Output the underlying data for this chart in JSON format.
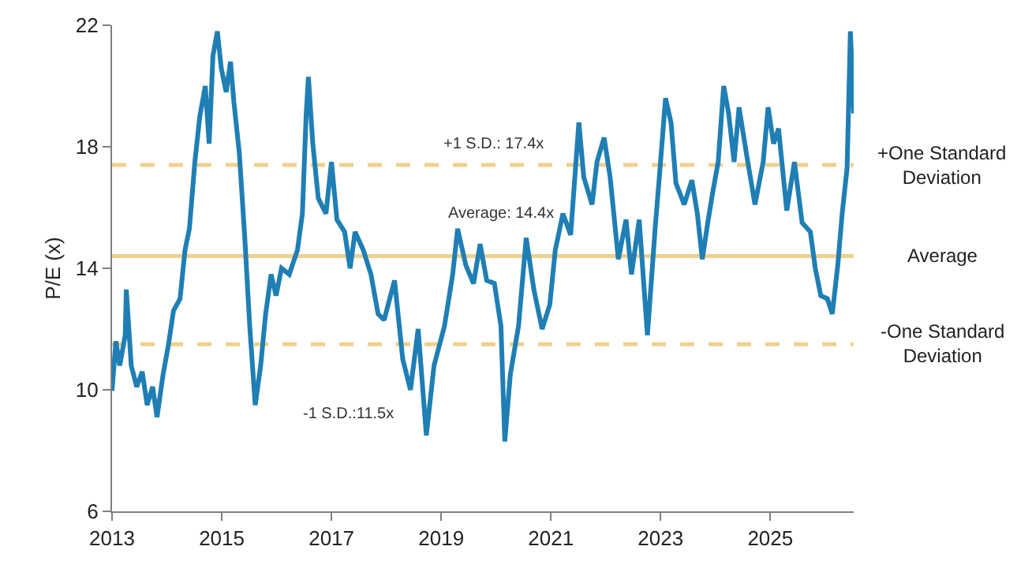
{
  "chart_data": {
    "type": "line",
    "ylabel": "P/E (x)",
    "x": [
      2013.0,
      2013.07,
      2013.14,
      2013.24,
      2013.26,
      2013.35,
      2013.45,
      2013.55,
      2013.64,
      2013.74,
      2013.82,
      2013.93,
      2014.03,
      2014.12,
      2014.24,
      2014.33,
      2014.41,
      2014.51,
      2014.6,
      2014.7,
      2014.77,
      2014.84,
      2014.92,
      2014.99,
      2015.08,
      2015.16,
      2015.22,
      2015.32,
      2015.42,
      2015.51,
      2015.61,
      2015.71,
      2015.8,
      2015.9,
      2015.99,
      2016.09,
      2016.23,
      2016.38,
      2016.47,
      2016.54,
      2016.58,
      2016.66,
      2016.76,
      2016.9,
      2017.0,
      2017.1,
      2017.24,
      2017.34,
      2017.43,
      2017.58,
      2017.72,
      2017.85,
      2017.96,
      2018.15,
      2018.3,
      2018.44,
      2018.58,
      2018.73,
      2018.87,
      2019.06,
      2019.21,
      2019.3,
      2019.45,
      2019.59,
      2019.71,
      2019.83,
      2019.97,
      2020.09,
      2020.16,
      2020.26,
      2020.41,
      2020.55,
      2020.69,
      2020.84,
      2020.98,
      2021.08,
      2021.22,
      2021.36,
      2021.51,
      2021.6,
      2021.75,
      2021.84,
      2021.97,
      2022.08,
      2022.23,
      2022.37,
      2022.47,
      2022.61,
      2022.76,
      2022.9,
      2022.99,
      2023.09,
      2023.19,
      2023.28,
      2023.43,
      2023.57,
      2023.67,
      2023.76,
      2023.86,
      2023.95,
      2024.05,
      2024.15,
      2024.24,
      2024.34,
      2024.43,
      2024.58,
      2024.72,
      2024.87,
      2024.96,
      2025.06,
      2025.15,
      2025.3,
      2025.44,
      2025.58,
      2025.73,
      2025.82,
      2025.92,
      2026.04,
      2026.13,
      2026.23,
      2026.31,
      2026.4,
      2026.46,
      2026.52
    ],
    "series": [
      {
        "color": "#1f7fb4",
        "values": [
          9.97,
          11.6,
          10.8,
          11.8,
          13.3,
          10.8,
          10.1,
          10.6,
          9.5,
          10.1,
          9.1,
          10.5,
          11.5,
          12.6,
          13.0,
          14.6,
          15.3,
          17.5,
          19.0,
          20.0,
          18.1,
          21.0,
          21.8,
          20.6,
          19.8,
          20.8,
          19.5,
          17.8,
          15.0,
          12.1,
          9.5,
          10.8,
          12.5,
          13.8,
          13.1,
          14.0,
          13.8,
          14.6,
          15.8,
          19.1,
          20.3,
          18.1,
          16.3,
          15.8,
          17.5,
          15.6,
          15.2,
          14.0,
          15.2,
          14.6,
          13.8,
          12.5,
          12.3,
          13.6,
          11.0,
          10.0,
          12.0,
          8.5,
          10.8,
          12.1,
          13.8,
          15.3,
          14.1,
          13.5,
          14.8,
          13.6,
          13.5,
          12.1,
          8.3,
          10.5,
          12.1,
          15.0,
          13.3,
          12.0,
          12.8,
          14.6,
          15.8,
          15.1,
          18.8,
          17.0,
          16.1,
          17.5,
          18.3,
          17.0,
          14.3,
          15.6,
          13.8,
          15.6,
          11.8,
          15.3,
          17.3,
          19.6,
          18.8,
          16.8,
          16.1,
          16.9,
          15.8,
          14.3,
          15.5,
          16.5,
          17.5,
          20.0,
          19.1,
          17.5,
          19.3,
          17.6,
          16.1,
          17.5,
          19.3,
          18.1,
          18.6,
          15.9,
          17.5,
          15.5,
          15.2,
          14.0,
          13.1,
          13.0,
          12.5,
          14.1,
          15.8,
          17.3,
          21.8,
          19.1
        ]
      }
    ],
    "xlim": [
      2013,
      2026.52
    ],
    "xticks": [
      2013,
      2015,
      2017,
      2019,
      2021,
      2023,
      2025
    ],
    "ylim": [
      6,
      22
    ],
    "yticks": [
      6,
      10,
      14,
      18,
      22
    ],
    "ref_lines": [
      {
        "axis": "y",
        "value": 17.4,
        "label": "+One Standard Deviation",
        "color": "#f0d08c",
        "line_style": "dashed"
      },
      {
        "axis": "y",
        "value": 14.4,
        "label": "Average",
        "color": "#f0d08c",
        "line_style": "solid"
      },
      {
        "axis": "y",
        "value": 11.5,
        "label": "-One Standard Deviation",
        "color": "#f0d08c",
        "line_style": "dashed"
      }
    ],
    "annotations": [
      "+1 S.D.: 17.4x",
      "Average: 14.4x",
      "-1 S.D.:11.5x"
    ],
    "grid": false,
    "marker": "none",
    "line_style": "solid"
  }
}
